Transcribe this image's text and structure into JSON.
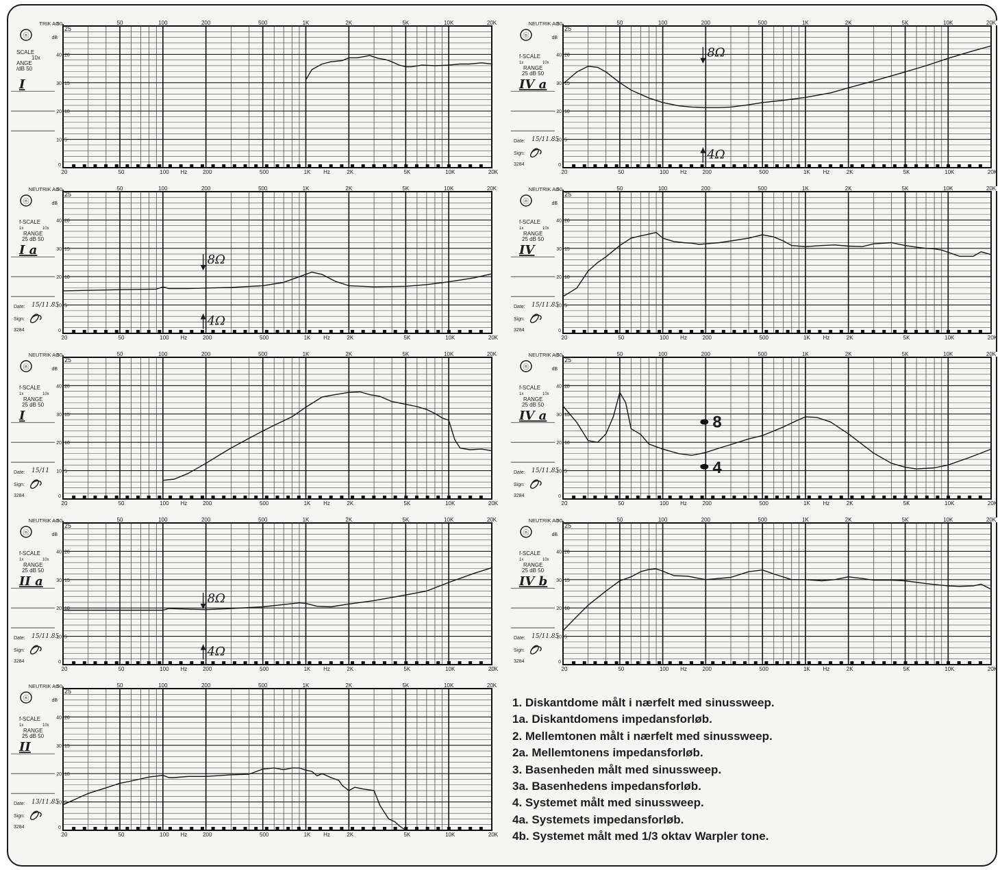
{
  "sheet": {
    "x_tick_labels": [
      "20",
      "50",
      "100",
      "200",
      "500",
      "1K",
      "2K",
      "5K",
      "10K",
      "20K"
    ],
    "x_tick_values": [
      20,
      50,
      100,
      200,
      500,
      1000,
      2000,
      5000,
      10000,
      20000
    ],
    "top_scale_labels": [
      "50",
      "100",
      "200",
      "500",
      "1K",
      "2K",
      "5K",
      "10K",
      "20K"
    ],
    "hz_label": "Hz",
    "db_unit": "dB",
    "brand": "NEUTRIK AG",
    "brand_partial": "TRIK AG",
    "range_25": "25",
    "range_50": "50",
    "f_scale": "f-SCALE",
    "scale_1x": "1x",
    "scale_10x": "10x",
    "range_label": "RANGE",
    "range_value": "25 dB 50",
    "date_label": "Date:",
    "sign_label": "Sign:",
    "code": "3284",
    "left_partial": [
      "SCALE",
      "10x",
      "ANGE",
      "/dB 50"
    ],
    "y_ticks_50": [
      "40",
      "30",
      "20",
      "10",
      "0"
    ],
    "y_ticks_25": [
      "20",
      "15",
      "10",
      "5"
    ]
  },
  "legend": [
    "1. Diskantdome målt i nærfelt med sinussweep.",
    "1a. Diskantdomens impedansforløb.",
    "2. Mellemtonen målt i nærfelt med sinussweep.",
    "2a. Mellemtonens impedansforløb.",
    "3. Basenheden målt med sinussweep.",
    "3a. Basenhedens impedansforløb.",
    "4. Systemet målt med sinussweep.",
    "4a. Systemets impedansforløb.",
    "4b. Systemet målt med 1/3 oktav Warpler tone."
  ],
  "chart_data": [
    {
      "type": "line",
      "label": "I",
      "x_scale": "log",
      "xlim": [
        20,
        20000
      ],
      "ylim": [
        0,
        25
      ],
      "x": [
        1000,
        1100,
        1300,
        1500,
        1800,
        2000,
        2300,
        2800,
        3200,
        3600,
        4000,
        4500,
        5000,
        5500,
        6500,
        8000,
        10000,
        12000,
        14000,
        17000,
        20000
      ],
      "y": [
        15.5,
        17.3,
        18.3,
        18.7,
        18.9,
        19.4,
        19.4,
        19.8,
        19.3,
        19.1,
        18.7,
        18.1,
        17.8,
        17.8,
        18.1,
        18.0,
        18.1,
        18.3,
        18.3,
        18.5,
        18.3
      ]
    },
    {
      "type": "line",
      "label": "IV a",
      "x_scale": "log",
      "xlim": [
        20,
        20000
      ],
      "ylim": [
        0,
        25
      ],
      "date": "15/11.85",
      "annotations": [
        "8Ω",
        "4Ω"
      ],
      "x": [
        20,
        25,
        30,
        35,
        40,
        50,
        60,
        80,
        100,
        130,
        160,
        200,
        250,
        300,
        400,
        500,
        700,
        1000,
        1500,
        2000,
        3000,
        5000,
        7000,
        10000,
        14000,
        20000
      ],
      "y": [
        14.8,
        16.9,
        17.9,
        17.7,
        16.9,
        15.0,
        13.7,
        12.3,
        11.5,
        10.9,
        10.7,
        10.6,
        10.6,
        10.7,
        11.1,
        11.5,
        11.9,
        12.4,
        13.2,
        14.1,
        15.3,
        16.9,
        18.0,
        19.3,
        20.4,
        21.5
      ]
    },
    {
      "type": "line",
      "label": "I a",
      "x_scale": "log",
      "xlim": [
        20,
        20000
      ],
      "ylim": [
        0,
        25
      ],
      "date": "15/11.85",
      "annotations": [
        "8Ω",
        "4Ω"
      ],
      "x": [
        20,
        50,
        90,
        100,
        110,
        150,
        200,
        300,
        500,
        700,
        900,
        1100,
        1300,
        1600,
        2000,
        3000,
        5000,
        7000,
        10000,
        15000,
        20000
      ],
      "y": [
        7.5,
        7.7,
        7.8,
        8.2,
        7.9,
        7.9,
        8.0,
        8.1,
        8.4,
        9.0,
        10.0,
        10.8,
        10.4,
        9.2,
        8.4,
        8.2,
        8.3,
        8.6,
        9.1,
        9.8,
        10.5
      ]
    },
    {
      "type": "line",
      "label": "IV",
      "x_scale": "log",
      "xlim": [
        20,
        20000
      ],
      "ylim": [
        0,
        25
      ],
      "date": "15/11.85",
      "x": [
        20,
        25,
        30,
        35,
        40,
        50,
        60,
        70,
        80,
        90,
        100,
        120,
        140,
        160,
        180,
        200,
        250,
        300,
        400,
        500,
        600,
        700,
        800,
        1000,
        1300,
        1600,
        2000,
        2500,
        3000,
        4000,
        5000,
        6000,
        7000,
        8000,
        9000,
        10000,
        12000,
        15000,
        17000,
        20000
      ],
      "y": [
        6.5,
        8.0,
        11.0,
        12.5,
        13.5,
        15.5,
        16.8,
        17.2,
        17.5,
        17.8,
        16.8,
        16.2,
        16.0,
        15.9,
        15.7,
        15.8,
        16.0,
        16.3,
        16.8,
        17.4,
        17.0,
        16.3,
        15.5,
        15.3,
        15.5,
        15.6,
        15.4,
        15.3,
        15.8,
        16.0,
        15.5,
        15.2,
        15.0,
        14.9,
        14.7,
        14.3,
        13.6,
        13.6,
        14.4,
        13.9
      ]
    },
    {
      "type": "line",
      "label": "I",
      "x_scale": "log",
      "xlim": [
        20,
        20000
      ],
      "ylim": [
        0,
        25
      ],
      "date": "15/11",
      "x": [
        100,
        120,
        150,
        200,
        250,
        300,
        400,
        500,
        600,
        800,
        1000,
        1300,
        1600,
        2000,
        2400,
        2800,
        3300,
        4000,
        5000,
        6000,
        7000,
        8000,
        9000,
        10000,
        11000,
        12000,
        14000,
        17000,
        20000
      ],
      "y": [
        3.3,
        3.5,
        4.5,
        6.3,
        7.8,
        9.0,
        10.7,
        12.0,
        13.0,
        14.5,
        16.2,
        18.0,
        18.4,
        18.8,
        18.9,
        18.4,
        18.1,
        17.2,
        16.7,
        16.3,
        15.8,
        15.1,
        14.3,
        13.9,
        10.5,
        9.0,
        8.7,
        8.8,
        8.5
      ]
    },
    {
      "type": "line",
      "label": "IV a",
      "x_scale": "log",
      "xlim": [
        20,
        20000
      ],
      "ylim": [
        0,
        25
      ],
      "date": "15/11.85",
      "annotations": [
        "8",
        "4"
      ],
      "x": [
        20,
        25,
        30,
        35,
        40,
        45,
        50,
        55,
        60,
        70,
        80,
        100,
        130,
        160,
        200,
        250,
        300,
        400,
        500,
        600,
        700,
        800,
        900,
        1000,
        1200,
        1500,
        2000,
        3000,
        4000,
        5000,
        6000,
        8000,
        10000,
        14000,
        20000
      ],
      "y": [
        16.4,
        13.5,
        10.3,
        10.0,
        11.5,
        14.5,
        18.8,
        17.0,
        12.4,
        11.4,
        9.7,
        8.8,
        8.0,
        7.7,
        8.2,
        9.0,
        9.6,
        10.6,
        11.2,
        12.0,
        12.7,
        13.4,
        14.0,
        14.5,
        14.4,
        13.6,
        11.5,
        8.1,
        6.3,
        5.6,
        5.3,
        5.5,
        6.0,
        7.3,
        8.8
      ]
    },
    {
      "type": "line",
      "label": "II a",
      "x_scale": "log",
      "xlim": [
        20,
        20000
      ],
      "ylim": [
        0,
        25
      ],
      "date": "15/11.85",
      "annotations": [
        "8Ω",
        "4Ω"
      ],
      "x": [
        20,
        50,
        100,
        110,
        150,
        200,
        300,
        500,
        700,
        900,
        1000,
        1200,
        1500,
        2000,
        3000,
        5000,
        7000,
        10000,
        15000,
        20000
      ],
      "y": [
        9.6,
        9.6,
        9.6,
        9.9,
        9.8,
        9.7,
        9.9,
        10.2,
        10.6,
        10.9,
        10.8,
        10.3,
        10.2,
        10.7,
        11.3,
        12.3,
        13.0,
        14.5,
        16.1,
        17.1
      ]
    },
    {
      "type": "line",
      "label": "IV b",
      "x_scale": "log",
      "xlim": [
        20,
        20000
      ],
      "ylim": [
        0,
        25
      ],
      "date": "15/11.85",
      "x": [
        20,
        25,
        30,
        40,
        50,
        60,
        70,
        80,
        90,
        100,
        120,
        150,
        200,
        300,
        400,
        500,
        600,
        800,
        1000,
        1300,
        1600,
        2000,
        2500,
        3000,
        4000,
        5000,
        7000,
        10000,
        12000,
        15000,
        17000,
        20000
      ],
      "y": [
        6.0,
        8.5,
        10.5,
        13.0,
        14.8,
        15.5,
        16.4,
        16.8,
        16.9,
        16.5,
        15.7,
        15.6,
        15.0,
        15.4,
        16.4,
        16.7,
        16.0,
        15.0,
        15.0,
        14.8,
        15.0,
        15.5,
        15.2,
        14.9,
        14.9,
        14.8,
        14.3,
        13.9,
        13.8,
        13.9,
        14.2,
        13.3
      ]
    },
    {
      "type": "line",
      "label": "II",
      "x_scale": "log",
      "xlim": [
        20,
        20000
      ],
      "ylim": [
        0,
        25
      ],
      "date": "13/11.85",
      "x": [
        20,
        30,
        40,
        50,
        60,
        80,
        100,
        110,
        120,
        150,
        200,
        300,
        400,
        500,
        600,
        700,
        800,
        900,
        1000,
        1100,
        1200,
        1300,
        1500,
        1700,
        1800,
        2000,
        2200,
        2500,
        3000,
        3300,
        3800,
        4200,
        4500,
        5000
      ],
      "y": [
        4.5,
        6.5,
        7.5,
        8.3,
        8.7,
        9.4,
        9.7,
        9.3,
        9.3,
        9.5,
        9.5,
        9.8,
        9.9,
        10.8,
        11.0,
        10.7,
        11.0,
        11.0,
        10.6,
        10.4,
        9.6,
        10.0,
        9.3,
        8.8,
        7.9,
        7.0,
        7.6,
        7.3,
        7.0,
        4.4,
        2.0,
        1.5,
        0.8,
        0.0
      ]
    }
  ]
}
